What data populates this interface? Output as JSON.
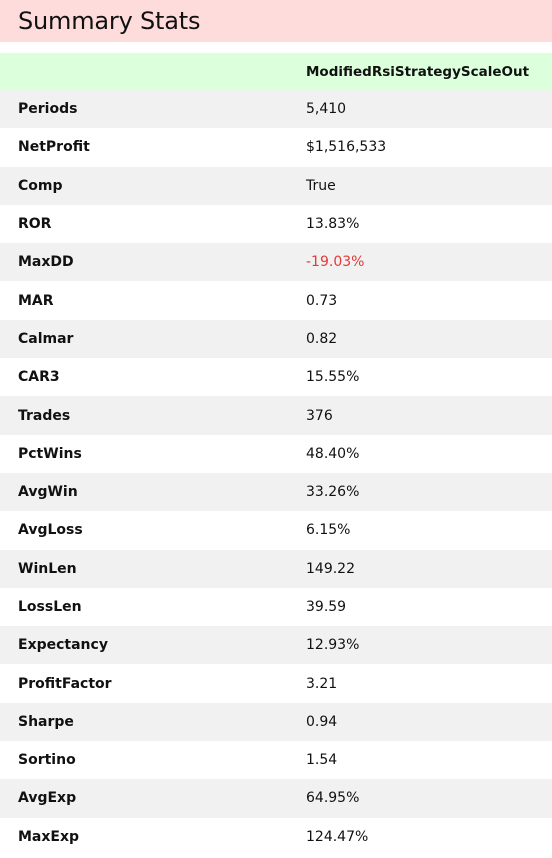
{
  "title": "Summary Stats",
  "table": {
    "header": {
      "label_col": "",
      "strategy_col": "ModifiedRsiStrategyScaleOut"
    },
    "rows": [
      {
        "label": "Periods",
        "value": "5,410",
        "negative": false
      },
      {
        "label": "NetProfit",
        "value": "$1,516,533",
        "negative": false
      },
      {
        "label": "Comp",
        "value": "True",
        "negative": false
      },
      {
        "label": "ROR",
        "value": "13.83%",
        "negative": false
      },
      {
        "label": "MaxDD",
        "value": "-19.03%",
        "negative": true
      },
      {
        "label": "MAR",
        "value": "0.73",
        "negative": false
      },
      {
        "label": "Calmar",
        "value": "0.82",
        "negative": false
      },
      {
        "label": "CAR3",
        "value": "15.55%",
        "negative": false
      },
      {
        "label": "Trades",
        "value": "376",
        "negative": false
      },
      {
        "label": "PctWins",
        "value": "48.40%",
        "negative": false
      },
      {
        "label": "AvgWin",
        "value": "33.26%",
        "negative": false
      },
      {
        "label": "AvgLoss",
        "value": "6.15%",
        "negative": false
      },
      {
        "label": "WinLen",
        "value": "149.22",
        "negative": false
      },
      {
        "label": "LossLen",
        "value": "39.59",
        "negative": false
      },
      {
        "label": "Expectancy",
        "value": "12.93%",
        "negative": false
      },
      {
        "label": "ProfitFactor",
        "value": "3.21",
        "negative": false
      },
      {
        "label": "Sharpe",
        "value": "0.94",
        "negative": false
      },
      {
        "label": "Sortino",
        "value": "1.54",
        "negative": false
      },
      {
        "label": "AvgExp",
        "value": "64.95%",
        "negative": false
      },
      {
        "label": "MaxExp",
        "value": "124.47%",
        "negative": false
      }
    ]
  },
  "colors": {
    "title_bg": "#ffdcdc",
    "header_bg": "#dcffdc",
    "odd_row_bg": "#f1f1f1",
    "negative_value": "#e53935"
  }
}
